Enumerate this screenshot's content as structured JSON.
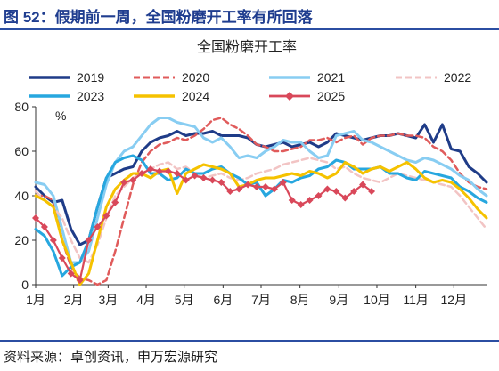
{
  "header": {
    "figure_title": "图 52：假期前一周，全国粉磨开工率有所回落"
  },
  "footer": {
    "source": "资料来源：卓创资讯，申万宏源研究"
  },
  "chart_data": {
    "type": "line",
    "title": "全国粉磨开工率",
    "ylabel": "%",
    "xlabel": "",
    "ylim": [
      0,
      80
    ],
    "yticks": [
      0,
      20,
      40,
      60,
      80
    ],
    "xlim": [
      0,
      51
    ],
    "xticks": [
      {
        "label": "1月",
        "x": 0
      },
      {
        "label": "2月",
        "x": 4.3
      },
      {
        "label": "3月",
        "x": 8.2
      },
      {
        "label": "4月",
        "x": 12.5
      },
      {
        "label": "5月",
        "x": 16.8
      },
      {
        "label": "6月",
        "x": 21.2
      },
      {
        "label": "7月",
        "x": 25.5
      },
      {
        "label": "8月",
        "x": 29.9
      },
      {
        "label": "9月",
        "x": 34.3
      },
      {
        "label": "10月",
        "x": 38.6
      },
      {
        "label": "11月",
        "x": 43
      },
      {
        "label": "12月",
        "x": 47.3
      }
    ],
    "grid": false,
    "legend_position": "top",
    "series": [
      {
        "name": "2019",
        "color": "#1f3c88",
        "dash": "solid",
        "width": 3,
        "marker": "none",
        "values": [
          44,
          40,
          37,
          38,
          25,
          18,
          20,
          35,
          48,
          50,
          52,
          53,
          60,
          64,
          66,
          67,
          69,
          67,
          68,
          68,
          69,
          67,
          67,
          67,
          66,
          63,
          62,
          63,
          64,
          62,
          63,
          64,
          62,
          64,
          68,
          67,
          66,
          65,
          66,
          67,
          67,
          68,
          67,
          66,
          72,
          64,
          72,
          61,
          60,
          53,
          50,
          46
        ]
      },
      {
        "name": "2020",
        "color": "#e05b5b",
        "dash": "dashed",
        "width": 2.5,
        "marker": "none",
        "values": [
          40,
          40,
          38,
          20,
          8,
          3,
          2,
          0,
          2,
          15,
          30,
          45,
          55,
          60,
          63,
          64,
          66,
          65,
          67,
          70,
          74,
          75,
          72,
          70,
          67,
          63,
          62,
          60,
          60,
          61,
          62,
          65,
          65,
          66,
          64,
          66,
          67,
          63,
          66,
          67,
          67,
          68,
          67,
          67,
          66,
          62,
          60,
          56,
          50,
          46,
          44,
          43
        ]
      },
      {
        "name": "2021",
        "color": "#88cdf2",
        "dash": "solid",
        "width": 3,
        "marker": "none",
        "values": [
          46,
          45,
          40,
          25,
          10,
          10,
          15,
          30,
          45,
          55,
          60,
          62,
          67,
          72,
          75,
          75,
          73,
          72,
          71,
          66,
          64,
          66,
          62,
          57,
          58,
          57,
          60,
          62,
          65,
          64,
          64,
          60,
          57,
          58,
          67,
          68,
          69,
          65,
          64,
          62,
          60,
          58,
          56,
          55,
          57,
          56,
          54,
          52,
          49,
          47,
          43,
          40
        ]
      },
      {
        "name": "2022",
        "color": "#f2c4c4",
        "dash": "dashed",
        "width": 2.5,
        "marker": "none",
        "values": [
          42,
          38,
          35,
          30,
          20,
          12,
          10,
          18,
          30,
          40,
          44,
          48,
          50,
          52,
          54,
          55,
          52,
          53,
          50,
          48,
          49,
          50,
          48,
          47,
          48,
          50,
          51,
          52,
          54,
          55,
          56,
          57,
          56,
          55,
          52,
          53,
          50,
          48,
          47,
          46,
          48,
          50,
          49,
          48,
          47,
          46,
          45,
          44,
          40,
          35,
          30,
          25
        ]
      },
      {
        "name": "2023",
        "color": "#27a7df",
        "dash": "solid",
        "width": 3,
        "marker": "none",
        "values": [
          25,
          22,
          15,
          4,
          8,
          10,
          20,
          35,
          48,
          55,
          57,
          58,
          56,
          50,
          50,
          47,
          48,
          52,
          50,
          50,
          52,
          53,
          50,
          48,
          45,
          46,
          40,
          43,
          47,
          46,
          48,
          49,
          52,
          53,
          56,
          55,
          52,
          52,
          52,
          53,
          50,
          50,
          48,
          47,
          51,
          50,
          49,
          48,
          44,
          42,
          39,
          37
        ]
      },
      {
        "name": "2024",
        "color": "#f5c200",
        "dash": "solid",
        "width": 3,
        "marker": "none",
        "values": [
          40,
          38,
          35,
          20,
          10,
          0,
          5,
          20,
          35,
          43,
          47,
          50,
          50,
          48,
          51,
          52,
          41,
          50,
          52,
          54,
          53,
          52,
          50,
          44,
          45,
          47,
          48,
          48,
          49,
          50,
          49,
          51,
          50,
          48,
          50,
          55,
          53,
          50,
          52,
          53,
          51,
          53,
          55,
          52,
          48,
          46,
          47,
          46,
          43,
          39,
          34,
          30
        ]
      },
      {
        "name": "2025",
        "color": "#d9485a",
        "dash": "solid",
        "width": 2.2,
        "marker": "diamond",
        "values": [
          30,
          26,
          20,
          12,
          5,
          2,
          20,
          26,
          31,
          37,
          46,
          47,
          50,
          52,
          51,
          51,
          50,
          47,
          49,
          48,
          47,
          46,
          42,
          43,
          45,
          44,
          44,
          43,
          46,
          38,
          36,
          38,
          40,
          43,
          42,
          39,
          42,
          45,
          42
        ]
      }
    ]
  }
}
